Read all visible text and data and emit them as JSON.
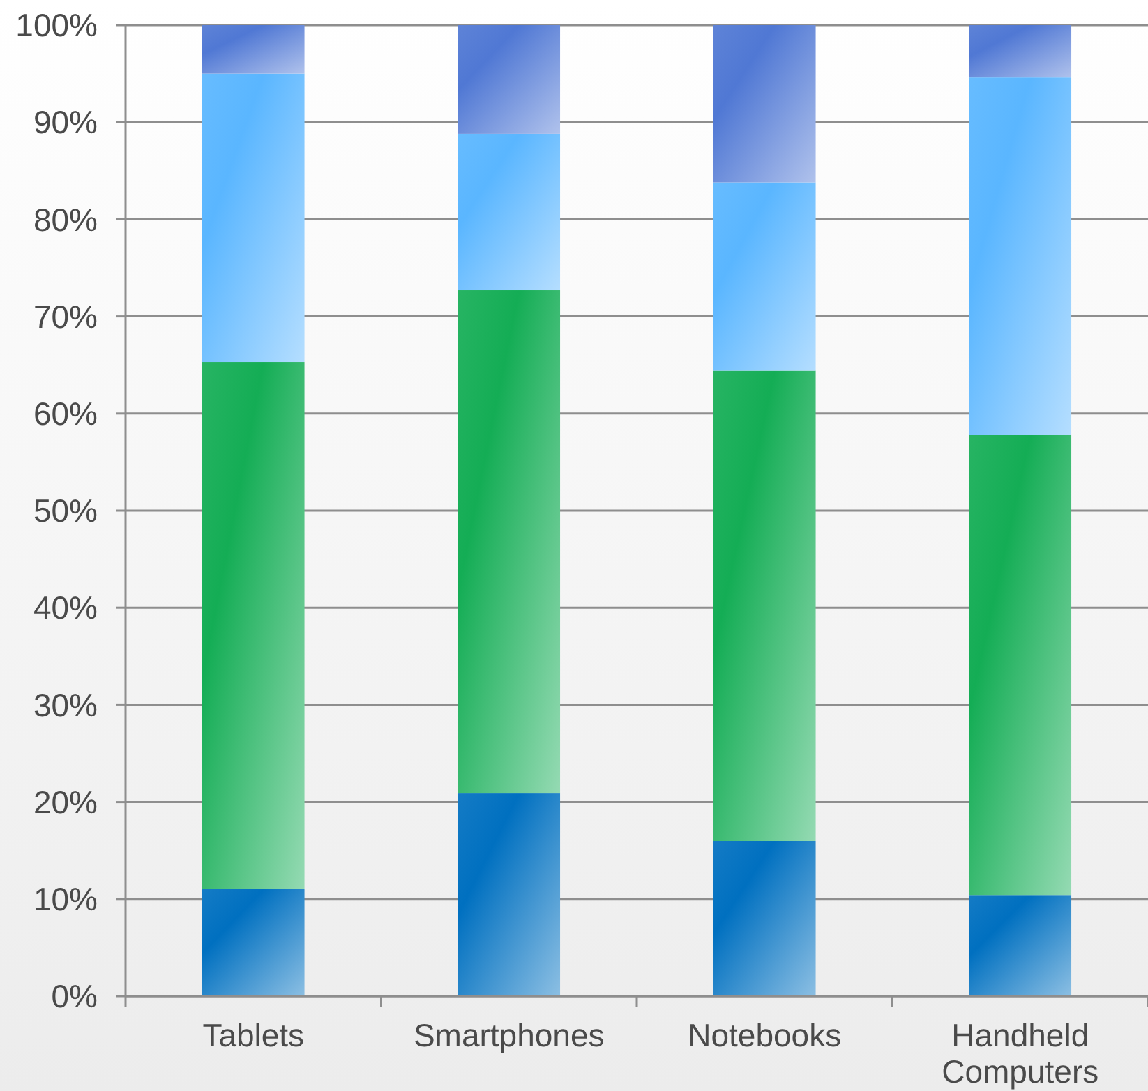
{
  "chart_data": {
    "type": "bar",
    "stacked": true,
    "categories": [
      "Tablets",
      "Smartphones",
      "Notebooks",
      "Handheld Computers"
    ],
    "series": [
      {
        "color": "#0070c0",
        "values": [
          11.0,
          20.9,
          16.0,
          10.4
        ]
      },
      {
        "color": "#14ad55",
        "values": [
          54.3,
          51.8,
          48.4,
          47.4
        ]
      },
      {
        "color": "#5ab6ff",
        "values": [
          29.7,
          16.1,
          19.4,
          36.8
        ]
      },
      {
        "color": "#5078d4",
        "values": [
          5.0,
          11.2,
          16.2,
          5.4
        ]
      }
    ],
    "ylim": [
      0,
      100
    ],
    "yticks": [
      {
        "value": 0,
        "label": "0%"
      },
      {
        "value": 10,
        "label": "10%"
      },
      {
        "value": 20,
        "label": "20%"
      },
      {
        "value": 30,
        "label": "30%"
      },
      {
        "value": 40,
        "label": "40%"
      },
      {
        "value": 50,
        "label": "50%"
      },
      {
        "value": 60,
        "label": "60%"
      },
      {
        "value": 70,
        "label": "70%"
      },
      {
        "value": 80,
        "label": "80%"
      },
      {
        "value": 90,
        "label": "90%"
      },
      {
        "value": 100,
        "label": "100%"
      }
    ],
    "grid": "y"
  }
}
